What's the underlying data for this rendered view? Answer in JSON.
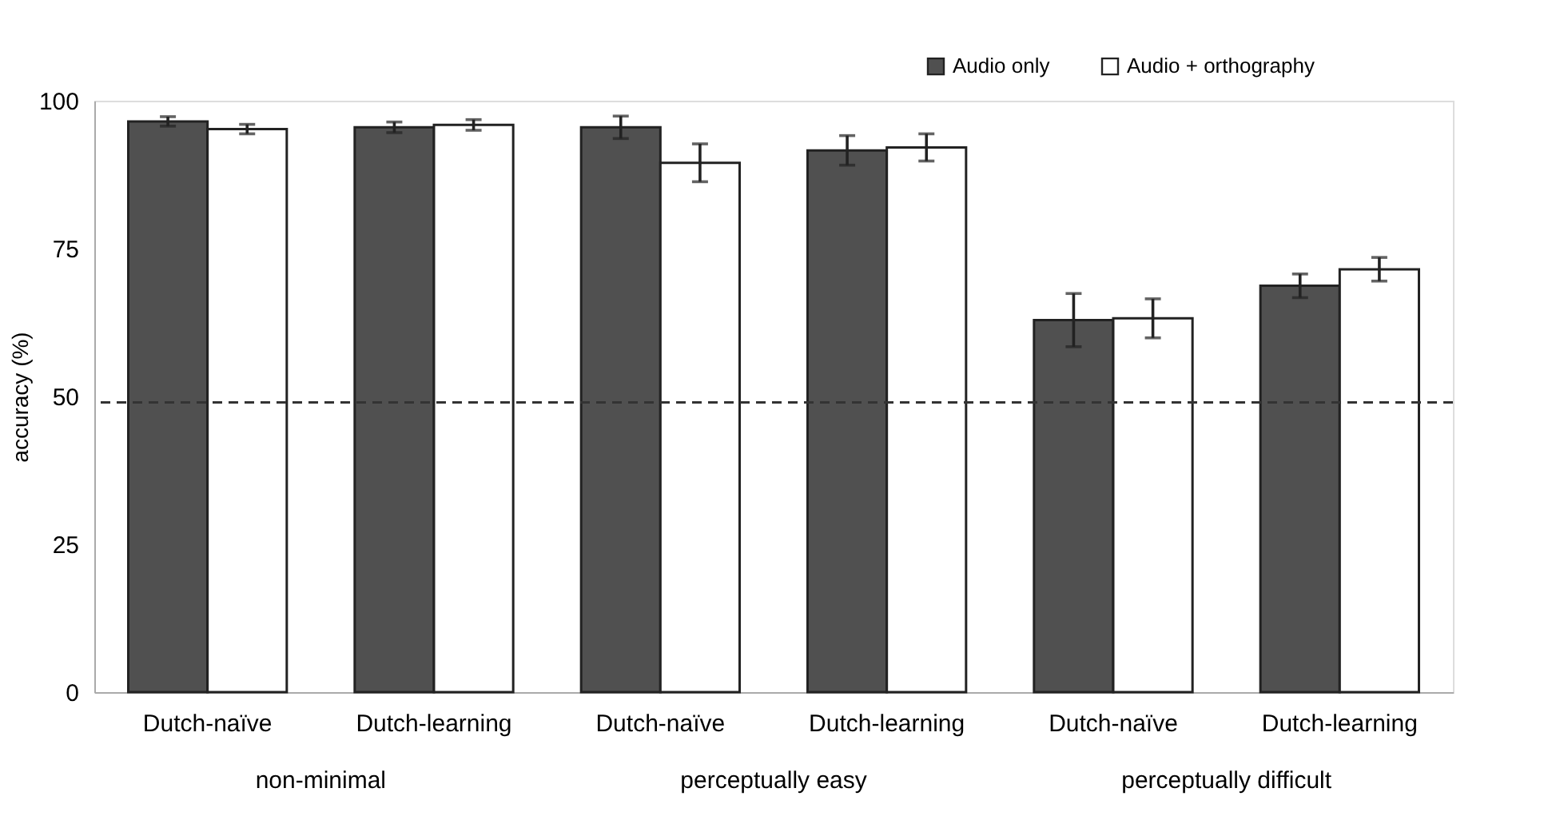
{
  "chart_data": {
    "type": "bar",
    "ylabel": "accuracy (%)",
    "categories": [
      "Dutch-naïve",
      "Dutch-learning",
      "Dutch-naïve",
      "Dutch-learning",
      "Dutch-naïve",
      "Dutch-learning"
    ],
    "series": [
      {
        "name": "Audio only",
        "color": "#505050",
        "values": [
          96.5,
          95.5,
          95.5,
          91.6,
          62.9,
          68.7
        ],
        "errors": [
          0.8,
          0.9,
          1.9,
          2.5,
          4.5,
          2.0
        ]
      },
      {
        "name": "Audio + orthography",
        "color": "#ffffff",
        "values": [
          95.2,
          95.9,
          89.5,
          92.1,
          63.2,
          71.5
        ],
        "errors": [
          0.8,
          0.9,
          3.2,
          2.3,
          3.3,
          2.0
        ]
      }
    ],
    "ylim": [
      0,
      100
    ],
    "yticks": [
      0,
      25,
      50,
      75,
      100
    ],
    "ref_lines": [
      {
        "axis": "y",
        "value": 49,
        "line_style": "dashed",
        "color": "#333333"
      }
    ],
    "annotations": [
      "non-minimal",
      "perceptually easy",
      "perceptually difficult"
    ],
    "legend": "top right",
    "grid": false
  }
}
